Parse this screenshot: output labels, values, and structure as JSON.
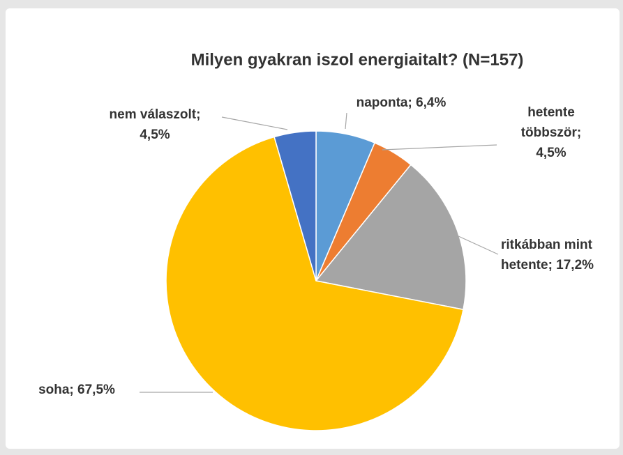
{
  "chart_data": {
    "type": "pie",
    "title": "Milyen gyakran iszol energiaitalt? (N=157)",
    "values": [
      6.4,
      4.5,
      17.2,
      67.5,
      4.5
    ],
    "value_labels": [
      [
        "naponta; 6,4%"
      ],
      [
        "hetente",
        "többször;",
        "4,5%"
      ],
      [
        "ritkábban mint",
        "hetente; 17,2%"
      ],
      [
        "soha; 67,5%"
      ],
      [
        "nem válaszolt;",
        "4,5%"
      ]
    ],
    "colors": [
      "#5b9bd5",
      "#ed7d31",
      "#a5a5a5",
      "#ffc000",
      "#4472c4"
    ]
  }
}
